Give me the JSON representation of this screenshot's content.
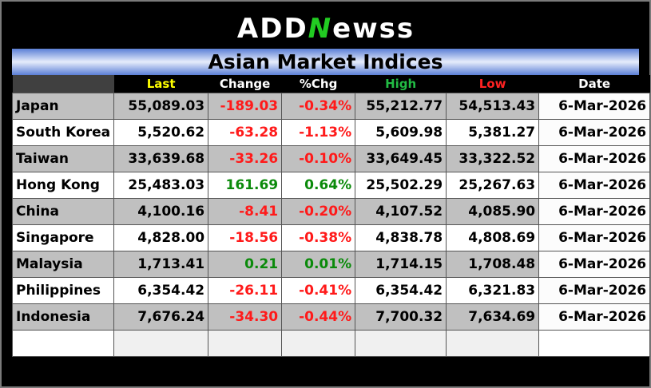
{
  "logo": {
    "part1": "ADD",
    "part2": "N",
    "part3": "ewss"
  },
  "title": "Asian Market Indices",
  "headers": {
    "last": "Last",
    "change": "Change",
    "pct": "%Chg",
    "high": "High",
    "low": "Low",
    "date": "Date"
  },
  "header_colors": {
    "last": "#ffff00",
    "change": "#ffffff",
    "pct": "#ffffff",
    "high": "#22bb44",
    "low": "#ff2222",
    "date": "#ffffff"
  },
  "rows": [
    {
      "name": "Japan",
      "last": "55,089.03",
      "change": "-189.03",
      "pct": "-0.34%",
      "high": "55,212.77",
      "low": "54,513.43",
      "date": "6-Mar-2026",
      "dir": "neg"
    },
    {
      "name": "South Korea",
      "last": "5,520.62",
      "change": "-63.28",
      "pct": "-1.13%",
      "high": "5,609.98",
      "low": "5,381.27",
      "date": "6-Mar-2026",
      "dir": "neg"
    },
    {
      "name": "Taiwan",
      "last": "33,639.68",
      "change": "-33.26",
      "pct": "-0.10%",
      "high": "33,649.45",
      "low": "33,322.52",
      "date": "6-Mar-2026",
      "dir": "neg"
    },
    {
      "name": "Hong Kong",
      "last": "25,483.03",
      "change": "161.69",
      "pct": "0.64%",
      "high": "25,502.29",
      "low": "25,267.63",
      "date": "6-Mar-2026",
      "dir": "pos"
    },
    {
      "name": "China",
      "last": "4,100.16",
      "change": "-8.41",
      "pct": "-0.20%",
      "high": "4,107.52",
      "low": "4,085.90",
      "date": "6-Mar-2026",
      "dir": "neg"
    },
    {
      "name": "Singapore",
      "last": "4,828.00",
      "change": "-18.56",
      "pct": "-0.38%",
      "high": "4,838.78",
      "low": "4,808.69",
      "date": "6-Mar-2026",
      "dir": "neg"
    },
    {
      "name": "Malaysia",
      "last": "1,713.41",
      "change": "0.21",
      "pct": "0.01%",
      "high": "1,714.15",
      "low": "1,708.48",
      "date": "6-Mar-2026",
      "dir": "pos"
    },
    {
      "name": "Philippines",
      "last": "6,354.42",
      "change": "-26.11",
      "pct": "-0.41%",
      "high": "6,354.42",
      "low": "6,321.83",
      "date": "6-Mar-2026",
      "dir": "neg"
    },
    {
      "name": "Indonesia",
      "last": "7,676.24",
      "change": "-34.30",
      "pct": "-0.44%",
      "high": "7,700.32",
      "low": "7,634.69",
      "date": "6-Mar-2026",
      "dir": "neg"
    }
  ]
}
